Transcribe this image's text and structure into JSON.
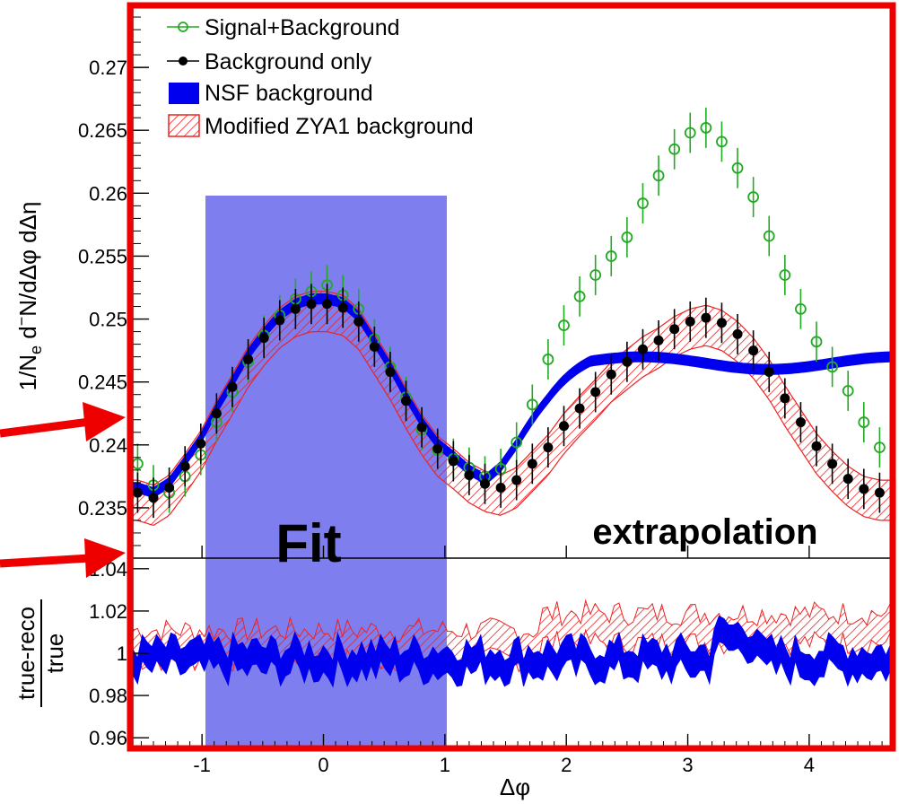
{
  "chart_data": [
    {
      "type": "scatter",
      "panel": "top",
      "ylabel": "1/N_e d^-N/dΔφ dΔη",
      "ylabel_parts": {
        "a": "1/N",
        "sub": "e",
        "b": " d",
        "sup": "−",
        "c": "N/dΔφ dΔη"
      },
      "xlim": [
        -1.57,
        4.71
      ],
      "ylim": [
        0.231,
        0.275
      ],
      "yticks": [
        0.235,
        0.24,
        0.245,
        0.25,
        0.255,
        0.26,
        0.265,
        0.27
      ],
      "ytick_labels": [
        "0.235",
        "0.24",
        "0.245",
        "0.25",
        "0.255",
        "0.26",
        "0.265",
        "0.27"
      ],
      "legend": [
        "Signal+Background",
        "Background only",
        "NSF background",
        "Modified ZYA1 background"
      ],
      "legend_position": "top-left",
      "annotations": [
        "Fit",
        "extrapolation"
      ],
      "fit_region": [
        -1.0,
        1.0
      ],
      "series": [
        {
          "name": "Signal+Background",
          "color": "#22aa22",
          "marker": "open-circle",
          "x": [
            -1.53,
            -1.4,
            -1.27,
            -1.14,
            -1.01,
            -0.88,
            -0.75,
            -0.62,
            -0.49,
            -0.36,
            -0.23,
            -0.1,
            0.03,
            0.16,
            0.29,
            0.42,
            0.55,
            0.68,
            0.81,
            0.94,
            1.07,
            1.2,
            1.33,
            1.46,
            1.59,
            1.72,
            1.85,
            1.98,
            2.11,
            2.24,
            2.37,
            2.5,
            2.63,
            2.76,
            2.89,
            3.02,
            3.15,
            3.28,
            3.41,
            3.54,
            3.67,
            3.8,
            3.93,
            4.06,
            4.19,
            4.32,
            4.45,
            4.58
          ],
          "y": [
            0.2385,
            0.2368,
            0.2362,
            0.2375,
            0.2392,
            0.2418,
            0.2442,
            0.2466,
            0.2487,
            0.2503,
            0.2516,
            0.2522,
            0.2527,
            0.2519,
            0.2508,
            0.2484,
            0.2462,
            0.2438,
            0.2412,
            0.2396,
            0.2389,
            0.2382,
            0.2375,
            0.2381,
            0.2402,
            0.2432,
            0.2468,
            0.2495,
            0.2518,
            0.2535,
            0.255,
            0.2565,
            0.2592,
            0.2614,
            0.2635,
            0.2648,
            0.2652,
            0.2641,
            0.262,
            0.2597,
            0.2566,
            0.2535,
            0.2508,
            0.2482,
            0.2462,
            0.2443,
            0.2418,
            0.2398
          ]
        },
        {
          "name": "Background only",
          "color": "#000000",
          "marker": "filled-circle",
          "x": [
            -1.53,
            -1.4,
            -1.27,
            -1.14,
            -1.01,
            -0.88,
            -0.75,
            -0.62,
            -0.49,
            -0.36,
            -0.23,
            -0.1,
            0.03,
            0.16,
            0.29,
            0.42,
            0.55,
            0.68,
            0.81,
            0.94,
            1.07,
            1.2,
            1.33,
            1.46,
            1.59,
            1.72,
            1.85,
            1.98,
            2.11,
            2.24,
            2.37,
            2.5,
            2.63,
            2.76,
            2.89,
            3.02,
            3.15,
            3.28,
            3.41,
            3.54,
            3.67,
            3.8,
            3.93,
            4.06,
            4.19,
            4.32,
            4.45,
            4.58
          ],
          "y": [
            0.2362,
            0.2358,
            0.2366,
            0.2383,
            0.2401,
            0.2425,
            0.2446,
            0.2468,
            0.2485,
            0.2499,
            0.2508,
            0.2512,
            0.2512,
            0.2509,
            0.2498,
            0.2478,
            0.2458,
            0.2435,
            0.2414,
            0.2397,
            0.2387,
            0.2376,
            0.2369,
            0.2366,
            0.2372,
            0.2385,
            0.2398,
            0.2415,
            0.2429,
            0.2442,
            0.2456,
            0.2466,
            0.2476,
            0.2483,
            0.2492,
            0.2498,
            0.2501,
            0.2497,
            0.2488,
            0.2475,
            0.2458,
            0.2437,
            0.2418,
            0.2399,
            0.2385,
            0.2373,
            0.2365,
            0.2362
          ]
        }
      ],
      "bands": [
        {
          "name": "NSF background",
          "color": "#0000ee"
        },
        {
          "name": "Modified ZYA1 background",
          "color": "#ee2222",
          "hatched": true
        }
      ]
    },
    {
      "type": "area",
      "panel": "bottom",
      "ylabel_num": "true-reco",
      "ylabel_den": "true",
      "xlabel": "Δφ",
      "xlim": [
        -1.57,
        4.71
      ],
      "ylim": [
        0.955,
        1.045
      ],
      "yticks": [
        0.96,
        0.98,
        1.0,
        1.02,
        1.04
      ],
      "ytick_labels": [
        "0.96",
        "0.98",
        "1",
        "1.02",
        "1.04"
      ],
      "xticks": [
        -1,
        0,
        1,
        2,
        3,
        4
      ],
      "xtick_labels": [
        "-1",
        "0",
        "1",
        "2",
        "3",
        "4"
      ]
    }
  ],
  "colors": {
    "frame": "#ee0000",
    "fit_region": "#7777ee",
    "signal": "#22aa22",
    "background": "#000000",
    "nsf": "#0000ee",
    "zya1": "#ee2222"
  }
}
